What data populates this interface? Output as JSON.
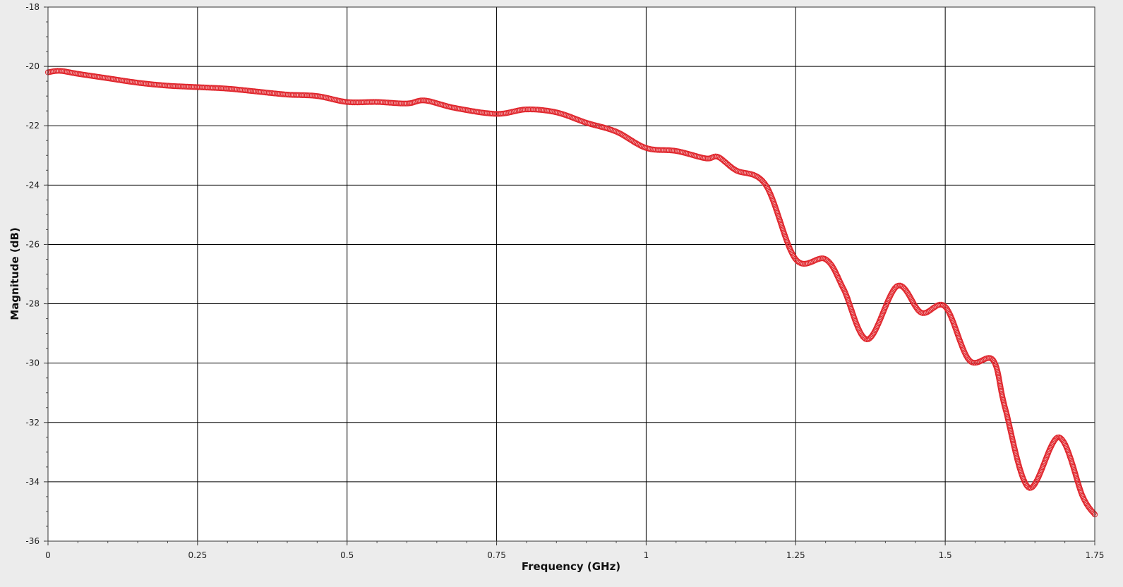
{
  "chart_data": {
    "type": "scatter",
    "title": "",
    "xlabel": "Frequency (GHz)",
    "ylabel": "Magnitude (dB)",
    "xlim": [
      0,
      1.75
    ],
    "ylim": [
      -36,
      -18
    ],
    "x_ticks": [
      0,
      0.25,
      0.5,
      0.75,
      1,
      1.25,
      1.5,
      1.75
    ],
    "x_tick_labels": [
      "0",
      "0.25",
      "0.5",
      "0.75",
      "1",
      "1.25",
      "1.5",
      "1.75"
    ],
    "y_ticks": [
      -36,
      -34,
      -32,
      -30,
      -28,
      -26,
      -24,
      -22,
      -20,
      -18
    ],
    "y_tick_labels": [
      "-36",
      "-34",
      "-32",
      "-30",
      "-28",
      "-26",
      "-24",
      "-22",
      "-20",
      "-18"
    ],
    "grid": true,
    "legend": "none",
    "marker": "open-circle",
    "series": [
      {
        "color": "#e0242b",
        "x": [
          0,
          0.02,
          0.05,
          0.1,
          0.15,
          0.2,
          0.25,
          0.3,
          0.35,
          0.4,
          0.45,
          0.5,
          0.55,
          0.6,
          0.63,
          0.68,
          0.75,
          0.8,
          0.85,
          0.9,
          0.95,
          1.0,
          1.05,
          1.1,
          1.12,
          1.15,
          1.2,
          1.25,
          1.3,
          1.33,
          1.37,
          1.42,
          1.46,
          1.5,
          1.54,
          1.58,
          1.6,
          1.64,
          1.69,
          1.73,
          1.75
        ],
        "y": [
          -20.2,
          -20.15,
          -20.25,
          -20.4,
          -20.55,
          -20.65,
          -20.7,
          -20.75,
          -20.85,
          -20.95,
          -21.0,
          -21.2,
          -21.2,
          -21.25,
          -21.15,
          -21.4,
          -21.6,
          -21.45,
          -21.55,
          -21.9,
          -22.2,
          -22.75,
          -22.85,
          -23.1,
          -23.05,
          -23.5,
          -24.0,
          -26.5,
          -26.5,
          -27.5,
          -29.2,
          -27.4,
          -28.3,
          -28.1,
          -29.9,
          -29.9,
          -31.5,
          -34.2,
          -32.5,
          -34.5,
          -35.1
        ]
      }
    ]
  }
}
